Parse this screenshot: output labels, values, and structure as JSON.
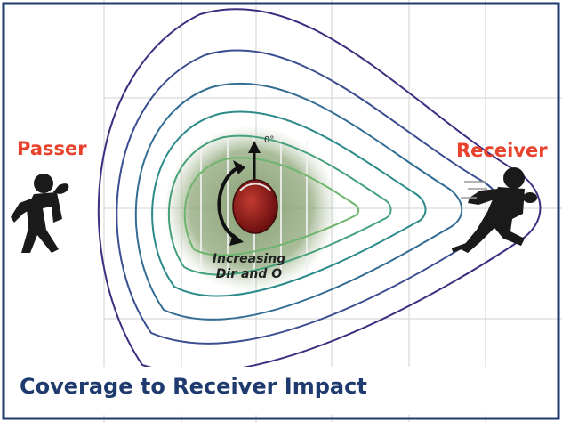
{
  "labels": {
    "passer": "Passer",
    "receiver": "Receiver",
    "angle": "0°",
    "note_line1": "Increasing",
    "note_line2": "Dir and O"
  },
  "caption": "Coverage to Receiver Impact",
  "icons": {
    "passer": "quarterback-silhouette-icon",
    "receiver": "running-receiver-silhouette-icon",
    "ball": "football-icon",
    "rotation": "rotation-arrow-icon"
  },
  "colors": {
    "frame": "#1f3a6e",
    "label": "#e8422c",
    "caption": "#1f3a6e",
    "contours": [
      "#3f2d80",
      "#3a4e90",
      "#336d93",
      "#2d8a8a",
      "#45a07c",
      "#6db56c"
    ],
    "field": "#7f9a6a",
    "ball": "#8b1a1a"
  }
}
